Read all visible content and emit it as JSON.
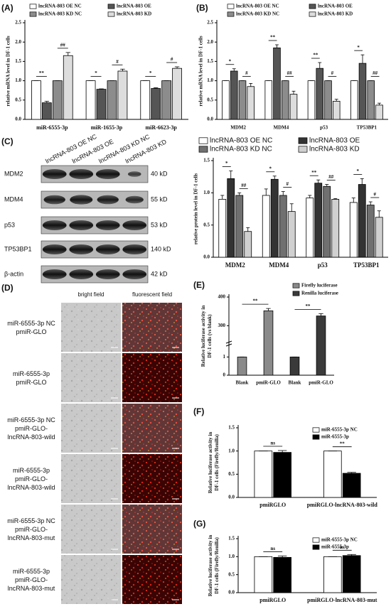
{
  "chart_data": [
    {
      "type": "bar",
      "panel": "(A)",
      "ylabel": "relative mRNA level in DF-1 cells",
      "categories": [
        "miR-6555-3p",
        "miR-1655-3p",
        "miR-6623-3p"
      ],
      "series": [
        {
          "name": "lncRNA-803 OE NC",
          "color": "#ffffff",
          "values": [
            1,
            1,
            1
          ],
          "errors": [
            0,
            0,
            0
          ]
        },
        {
          "name": "lncRNA-803 OE",
          "color": "#555555",
          "values": [
            0.43,
            0.78,
            0.8
          ],
          "errors": [
            0.04,
            0.01,
            0.02
          ]
        },
        {
          "name": "lncRNA-803 KD NC",
          "color": "#8c8c8c",
          "values": [
            1,
            1,
            1
          ],
          "errors": [
            0,
            0,
            0
          ]
        },
        {
          "name": "lncRNA-803 KD",
          "color": "#dddddd",
          "values": [
            1.65,
            1.25,
            1.32
          ],
          "errors": [
            0.08,
            0.05,
            0.04
          ]
        }
      ],
      "annotations": [
        "**",
        "##",
        "*",
        "#",
        "*",
        "#"
      ],
      "ylim": [
        0,
        2.5
      ],
      "yticks": [
        {
          "value": 0,
          "label": "0.0"
        },
        0.5,
        {
          "value": 1,
          "label": "1.0"
        },
        1.5,
        {
          "value": 2,
          "label": "2.0"
        },
        2.5
      ]
    },
    {
      "type": "bar",
      "panel": "(B)",
      "ylabel": "relative mRNA level in DF-1 cells",
      "categories": [
        "MDM2",
        "MDM4",
        "p53",
        "TP53BP1"
      ],
      "series": [
        {
          "name": "lncRNA-803 OE NC",
          "color": "#ffffff",
          "values": [
            1,
            1,
            1,
            1
          ],
          "errors": [
            0,
            0,
            0,
            0
          ]
        },
        {
          "name": "lncRNA-803 OE",
          "color": "#555555",
          "values": [
            1.25,
            1.85,
            1.32,
            1.45
          ],
          "errors": [
            0.06,
            0.08,
            0.15,
            0.22
          ]
        },
        {
          "name": "lncRNA-803 KD NC",
          "color": "#8c8c8c",
          "values": [
            1,
            1,
            1,
            1
          ],
          "errors": [
            0,
            0,
            0,
            0
          ]
        },
        {
          "name": "lncRNA-803 KD",
          "color": "#dddddd",
          "values": [
            0.85,
            0.65,
            0.47,
            0.37
          ],
          "errors": [
            0.08,
            0.08,
            0.05,
            0.05
          ]
        }
      ],
      "annotations": [
        "*",
        "#",
        "**",
        "##",
        "**",
        "#",
        "*",
        "##"
      ],
      "ylim": [
        0,
        2.5
      ],
      "yticks": [
        {
          "value": 0,
          "label": "0.0"
        },
        0.5,
        {
          "value": 1,
          "label": "1.0"
        },
        1.5,
        {
          "value": 2,
          "label": "2.0"
        },
        2.5
      ]
    },
    {
      "type": "bar",
      "panel": "(C)",
      "ylabel": "relative protein level in DF-1 cells",
      "categories": [
        "MDM2",
        "MDM4",
        "p53",
        "TP53BP1"
      ],
      "series": [
        {
          "name": "lncRNA-803 OE NC",
          "color": "#ffffff",
          "values": [
            0.9,
            0.96,
            0.92,
            0.85
          ],
          "errors": [
            0.06,
            0.1,
            0.04,
            0.07
          ]
        },
        {
          "name": "lncRNA-803 OE",
          "color": "#333333",
          "values": [
            1.22,
            1.21,
            1.15,
            1.13
          ],
          "errors": [
            0.12,
            0.05,
            0.05,
            0.09
          ]
        },
        {
          "name": "lncRNA-803 KD NC",
          "color": "#707070",
          "values": [
            0.96,
            0.96,
            1.1,
            0.81
          ],
          "errors": [
            0.04,
            0.06,
            0.03,
            0.05
          ]
        },
        {
          "name": "lncRNA-803 KD",
          "color": "#d0d0d0",
          "values": [
            0.4,
            0.71,
            0.9,
            0.62
          ],
          "errors": [
            0.06,
            0.12,
            0.01,
            0.1
          ]
        }
      ],
      "annotations": [
        "*",
        "##",
        "*",
        "#",
        "**",
        "##",
        "*",
        "#"
      ],
      "ylim": [
        0,
        1.5
      ],
      "yticks": [
        {
          "value": 0,
          "label": "0.0"
        },
        0.5,
        {
          "value": 1,
          "label": "1.0"
        },
        1.5
      ]
    },
    {
      "type": "bar",
      "panel": "(E)",
      "ylabel": "Relative luciferase activity in DF-1 cells (vs blank)",
      "categories": [
        "Blank",
        "pmiR-GLO",
        "Blank",
        "pmiR-GLO"
      ],
      "series": [
        {
          "name": "Firefly luciferase",
          "color": "#8a8a8a",
          "values": [
            1,
            352,
            null,
            null
          ],
          "errors": [
            0,
            8,
            null,
            null
          ]
        },
        {
          "name": "Renilla luciferase",
          "color": "#3a3a3a",
          "values": [
            null,
            null,
            1,
            334
          ],
          "errors": [
            null,
            null,
            0,
            8
          ]
        }
      ],
      "annotations": [
        "**",
        "**"
      ],
      "ylim": [
        0,
        400
      ],
      "ybreak": [
        1.5,
        250
      ],
      "yticks": [
        0,
        1,
        300,
        400
      ]
    },
    {
      "type": "bar",
      "panel": "(F)",
      "ylabel": "Relative luciferase activity in DF-1 cells (Firefly/Renilla)",
      "categories": [
        "pmiRGLO",
        "pmiRGLO-lncRNA-803-wild"
      ],
      "series": [
        {
          "name": "miR-6555-3p NC",
          "color": "#ffffff",
          "values": [
            1,
            1
          ],
          "errors": [
            0,
            0
          ]
        },
        {
          "name": "miR-6555-3p",
          "color": "#000000",
          "values": [
            0.97,
            0.52
          ],
          "errors": [
            0.04,
            0.02
          ]
        }
      ],
      "annotations": [
        "ns",
        "**"
      ],
      "ylim": [
        0,
        1.5
      ],
      "yticks": [
        {
          "value": 0,
          "label": "0.0"
        },
        0.5,
        {
          "value": 1,
          "label": "1.0"
        },
        1.5
      ]
    },
    {
      "type": "bar",
      "panel": "(G)",
      "ylabel": "Relative luciferase activity in DF-1 cells (Firefly/Renilla)",
      "categories": [
        "pmiRGLO",
        "pmiRGLO-lncRNA-803-mut"
      ],
      "series": [
        {
          "name": "miR-6555-3p NC",
          "color": "#ffffff",
          "values": [
            1,
            1
          ],
          "errors": [
            0,
            0
          ]
        },
        {
          "name": "miR-6555-3p",
          "color": "#000000",
          "values": [
            0.98,
            1.03
          ],
          "errors": [
            0.04,
            0.03
          ]
        }
      ],
      "annotations": [
        "ns",
        "ns"
      ],
      "ylim": [
        0,
        1.5
      ],
      "yticks": [
        {
          "value": 0,
          "label": "0.0"
        },
        0.5,
        {
          "value": 1,
          "label": "1.0"
        },
        1.5
      ]
    }
  ],
  "blot": {
    "columns": [
      "lncRNA-803 OE NC",
      "lncRNA-803 OE",
      "lncRNA-803 KD NC",
      "lncRNA-803 KD"
    ],
    "rows": [
      {
        "protein": "MDM2",
        "size": "40 kD"
      },
      {
        "protein": "MDM4",
        "size": "55 kD"
      },
      {
        "protein": "p53",
        "size": "53 kD"
      },
      {
        "protein": "TP53BP1",
        "size": "140 kD"
      },
      {
        "protein": "β-actin",
        "size": "42 kD"
      }
    ]
  },
  "microscopy": {
    "panel": "(D)",
    "columns": [
      "bright field",
      "fluorescent field"
    ],
    "rows": [
      [
        "miR-6555-3p NC",
        "pmiR-GLO"
      ],
      [
        "miR-6555-3p",
        "pmiR-GLO"
      ],
      [
        "miR-6555-3p NC",
        "pmiR-GLO-",
        "lncRNA-803-wild"
      ],
      [
        "miR-6555-3p",
        "pmiR-GLO-",
        "lncRNA-803-wild"
      ],
      [
        "miR-6555-3p NC",
        "pmiR-GLO-",
        "lncRNA-803-mut"
      ],
      [
        "miR-6555-3p",
        "pmiR-GLO-",
        "lncRNA-803-mut"
      ]
    ]
  }
}
